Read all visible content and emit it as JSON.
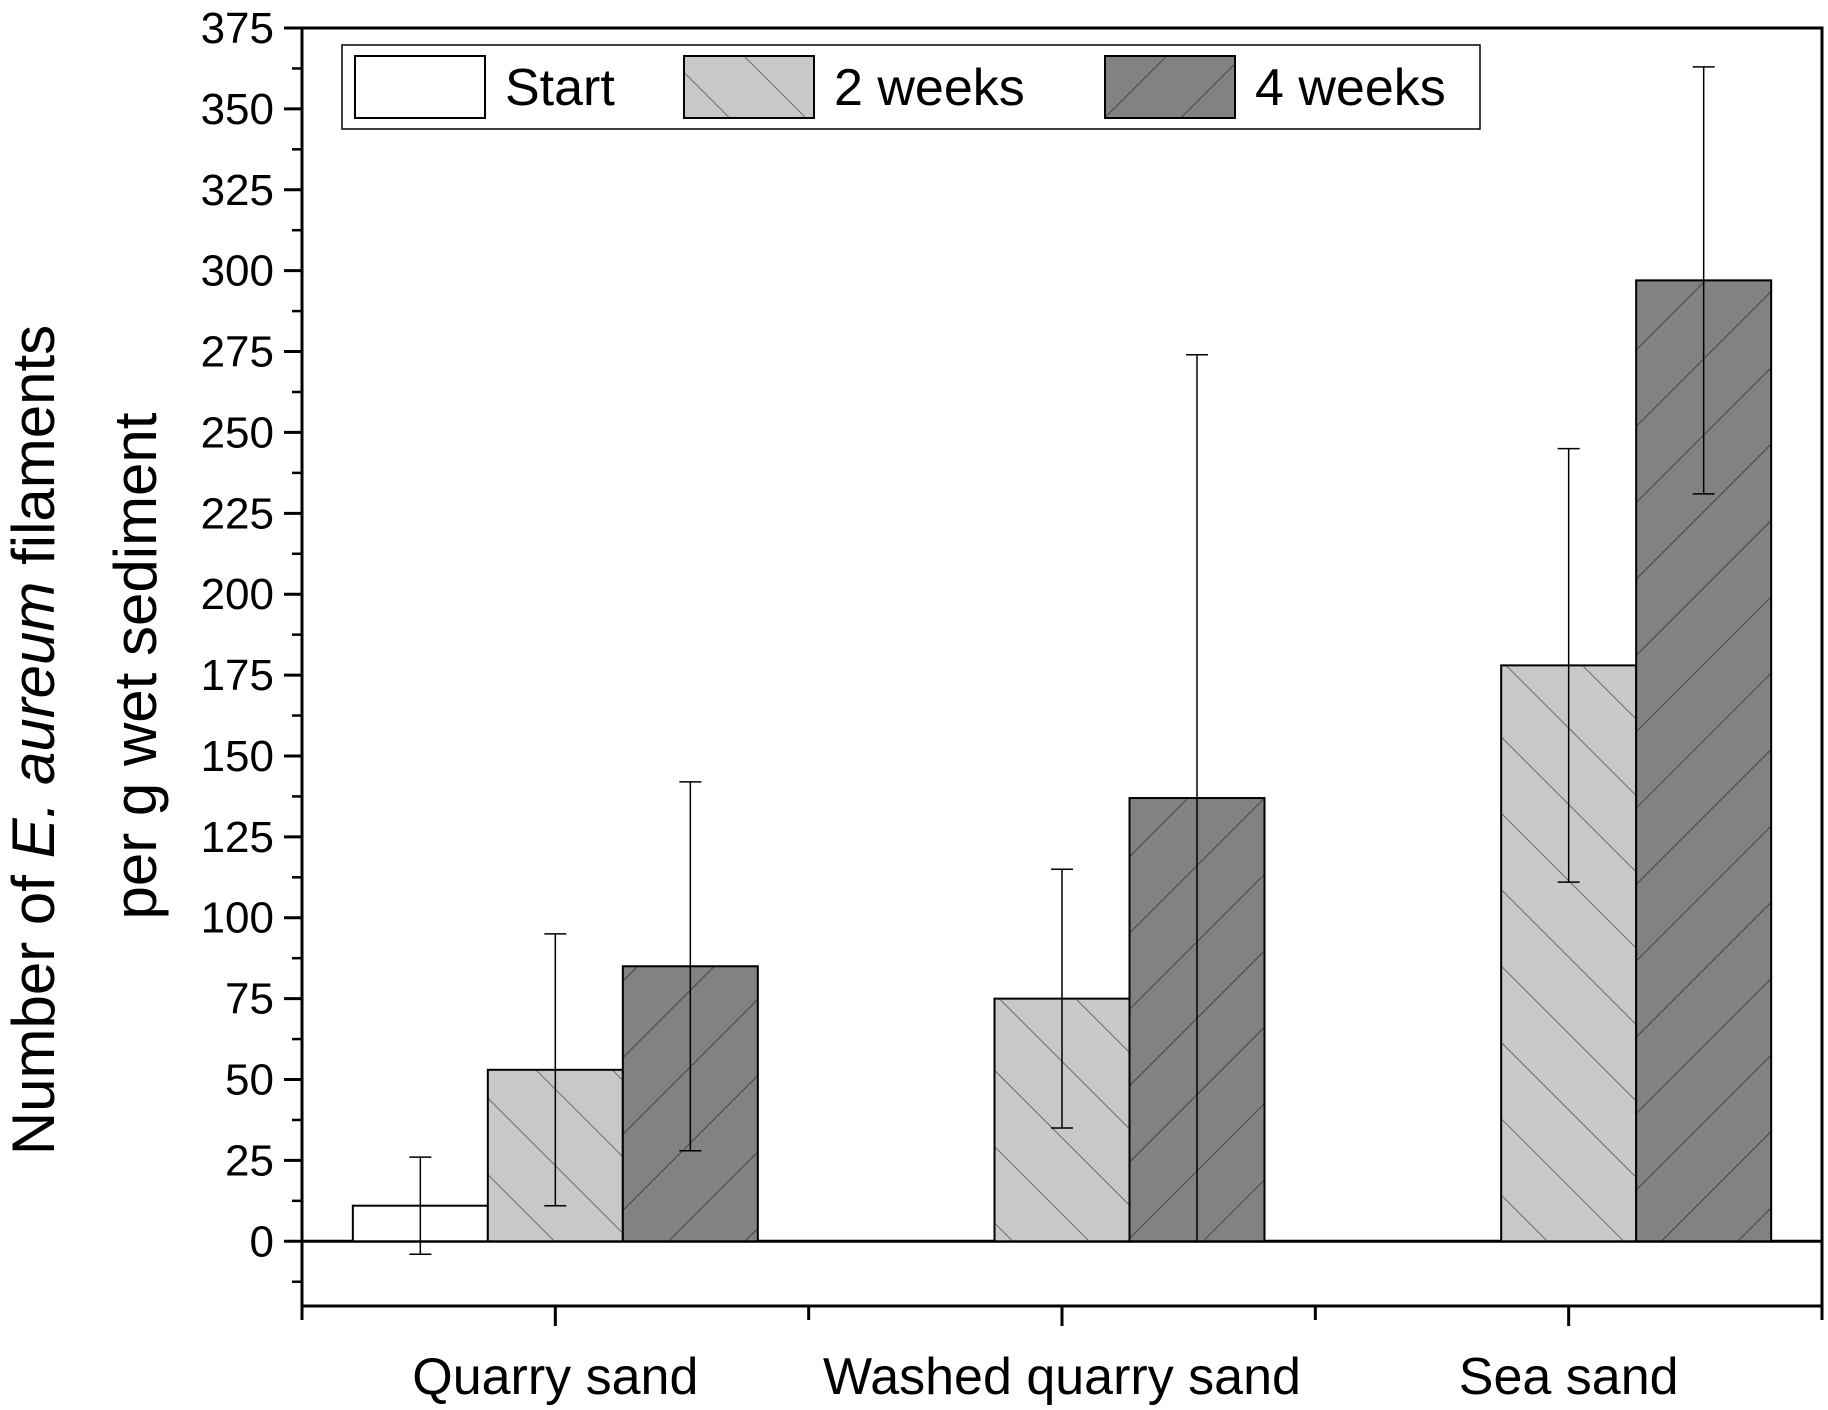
{
  "chart_data": {
    "type": "bar",
    "categories": [
      "Quarry sand",
      "Washed quarry sand",
      "Sea sand"
    ],
    "series": [
      {
        "name": "Start",
        "values": [
          11,
          null,
          null
        ],
        "errors": [
          15,
          null,
          null
        ],
        "color": "#ffffff",
        "hatch": "none"
      },
      {
        "name": "2 weeks",
        "values": [
          53,
          75,
          178
        ],
        "errors": [
          42,
          40,
          67
        ],
        "color": "#c8c8c8",
        "hatch": "forward"
      },
      {
        "name": "4 weeks",
        "values": [
          85,
          137,
          297
        ],
        "errors": [
          57,
          137,
          66
        ],
        "color": "#828282",
        "hatch": "back"
      }
    ],
    "ylabel_line1_pre": "Number of ",
    "ylabel_line1_italic": "E. aureum",
    "ylabel_line1_post": " filaments",
    "ylabel_line2": "per g wet sediment",
    "xlabel": "",
    "ylim": [
      -20,
      375
    ],
    "yticks": [
      0,
      25,
      50,
      75,
      100,
      125,
      150,
      175,
      200,
      225,
      250,
      275,
      300,
      325,
      350,
      375
    ],
    "legend_position": "top",
    "grid": false
  }
}
